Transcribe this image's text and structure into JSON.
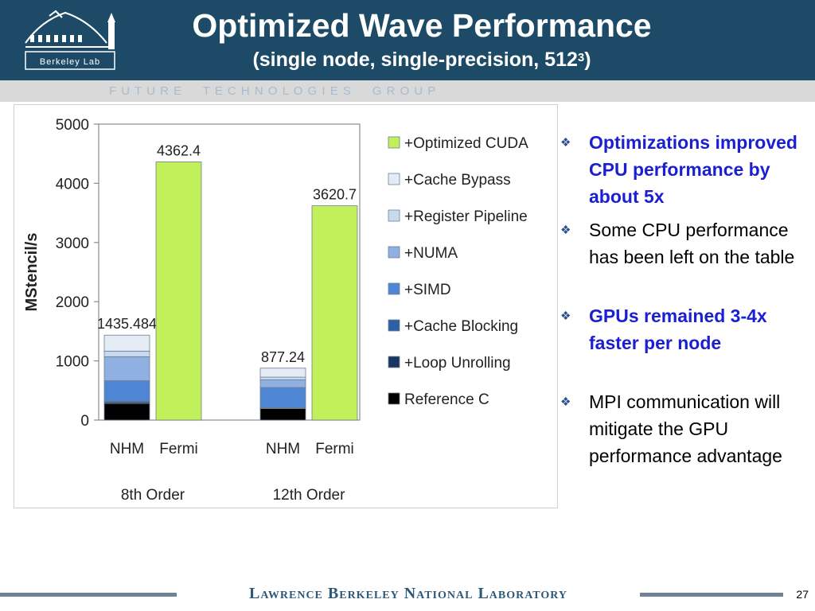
{
  "header": {
    "logo_text": "Berkeley Lab",
    "title": "Optimized Wave Performance",
    "subtitle_prefix": "(single node, single-precision, 512",
    "subtitle_exp": "3",
    "subtitle_suffix": ")",
    "band_text": "F U T U R E     T E C H N O L O G I E S     G R O U P"
  },
  "chart_data": {
    "type": "bar",
    "stacked": true,
    "ylabel": "MStencil/s",
    "ylim": [
      0,
      5000
    ],
    "yticks": [
      0,
      1000,
      2000,
      3000,
      4000,
      5000
    ],
    "groups": [
      {
        "label": "8th Order",
        "bars": [
          {
            "label": "NHM",
            "total_label": "1435.484",
            "segments": {
              "Reference C": 280,
              "+Loop Unrolling": 20,
              "+Cache Blocking": 20,
              "+SIMD": 345,
              "+NUMA": 405,
              "+Register Pipeline": 95,
              "+Cache Bypass": 270
            }
          },
          {
            "label": "Fermi",
            "total_label": "4362.4",
            "segments": {
              "+Optimized CUDA": 4362.4
            }
          }
        ]
      },
      {
        "label": "12th Order",
        "bars": [
          {
            "label": "NHM",
            "total_label": "877.24",
            "segments": {
              "Reference C": 195,
              "+Loop Unrolling": 8,
              "+Cache Blocking": 7,
              "+SIMD": 340,
              "+NUMA": 130,
              "+Register Pipeline": 45,
              "+Cache Bypass": 152
            }
          },
          {
            "label": "Fermi",
            "total_label": "3620.7",
            "segments": {
              "+Optimized CUDA": 3620.7
            }
          }
        ]
      }
    ],
    "legend": {
      "position": "right",
      "entries": [
        {
          "name": "+Optimized CUDA",
          "color": "#c2f05a"
        },
        {
          "name": "+Cache Bypass",
          "color": "#e5ebf5"
        },
        {
          "name": "+Register Pipeline",
          "color": "#c8daf0"
        },
        {
          "name": "+NUMA",
          "color": "#8fb0e0"
        },
        {
          "name": "+SIMD",
          "color": "#4e86d4"
        },
        {
          "name": "+Cache Blocking",
          "color": "#2b5fa8"
        },
        {
          "name": "+Loop Unrolling",
          "color": "#1a3560"
        },
        {
          "name": "Reference C",
          "color": "#000000"
        }
      ]
    },
    "grid": false
  },
  "bullets": [
    {
      "text": "Optimizations improved CPU performance by about 5x",
      "style": "blue"
    },
    {
      "text": "Some CPU performance has been left on the table",
      "style": "black"
    },
    {
      "text": "GPUs remained 3-4x faster per node",
      "style": "blue"
    },
    {
      "text": "MPI communication will mitigate the GPU performance advantage",
      "style": "black"
    }
  ],
  "footer": {
    "lab_name": "Lawrence Berkeley National Laboratory",
    "page_number": "27"
  },
  "colors": {
    "header_bg": "#1d4a66",
    "band_bg": "#d9d9d9",
    "bullet_blue": "#1a1fd1",
    "footer_text": "#2e5878"
  }
}
